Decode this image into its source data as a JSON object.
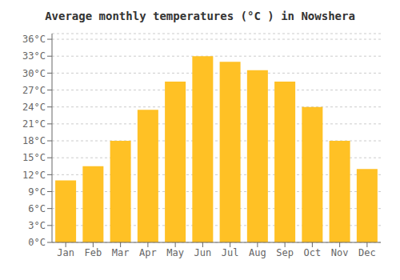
{
  "chart_data": {
    "type": "bar",
    "title": "Average monthly temperatures (°C ) in Nowshera",
    "categories": [
      "Jan",
      "Feb",
      "Mar",
      "Apr",
      "May",
      "Jun",
      "Jul",
      "Aug",
      "Sep",
      "Oct",
      "Nov",
      "Dec"
    ],
    "values": [
      11,
      13.5,
      18,
      23.5,
      28.5,
      33,
      32,
      30.5,
      28.5,
      24,
      18,
      13
    ],
    "color": "#FFC125",
    "ylim": [
      0,
      37
    ],
    "yticks": [
      {
        "value": 0,
        "label": "0°C"
      },
      {
        "value": 3,
        "label": "3°C"
      },
      {
        "value": 6,
        "label": "6°C"
      },
      {
        "value": 9,
        "label": "9°C"
      },
      {
        "value": 12,
        "label": "12°C"
      },
      {
        "value": 15,
        "label": "15°C"
      },
      {
        "value": 18,
        "label": "18°C"
      },
      {
        "value": 21,
        "label": "21°C"
      },
      {
        "value": 24,
        "label": "24°C"
      },
      {
        "value": 27,
        "label": "27°C"
      },
      {
        "value": 30,
        "label": "30°C"
      },
      {
        "value": 33,
        "label": "33°C"
      },
      {
        "value": 36,
        "label": "36°C"
      }
    ],
    "grid": true
  }
}
